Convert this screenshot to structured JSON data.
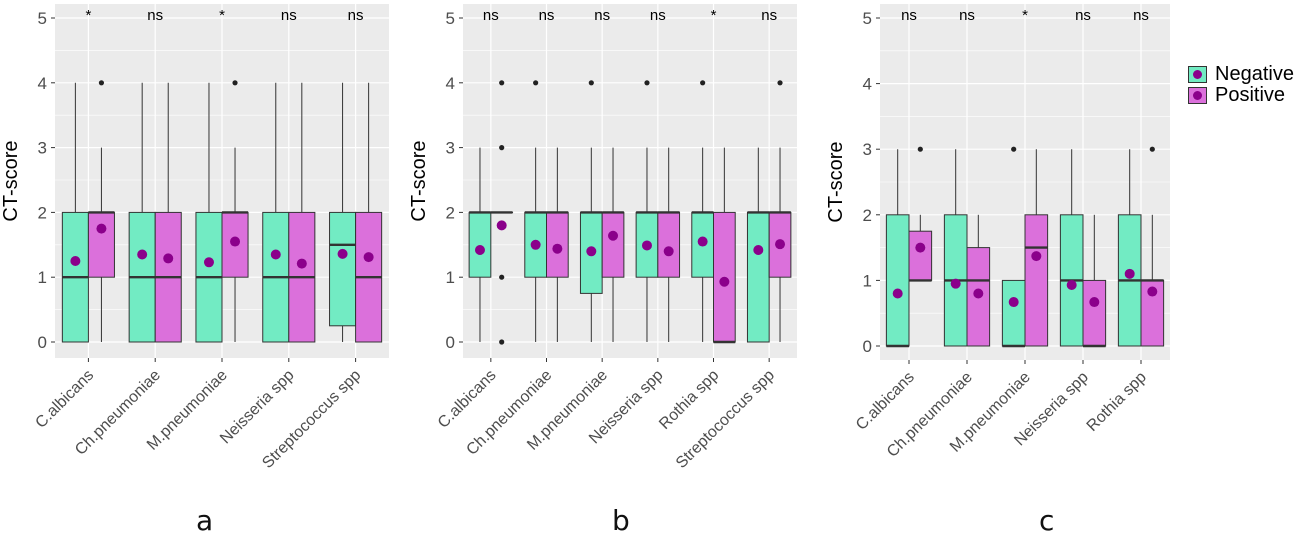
{
  "chart_data": [
    {
      "panel_label": "a",
      "type": "boxplot",
      "ylabel": "CT-score",
      "xlabel": "",
      "ylim": [
        -0.25,
        5.2
      ],
      "yticks": [
        0,
        1,
        2,
        3,
        4,
        5
      ],
      "grid": true,
      "categories": [
        "C.albicans",
        "Ch.pneumoniae",
        "M.pneumoniae",
        "Neisseria spp",
        "Streptococcus spp"
      ],
      "significance": [
        "*",
        "ns",
        "*",
        "ns",
        "ns"
      ],
      "series": [
        {
          "name": "Negative",
          "boxes": [
            {
              "min": 0,
              "q1": 0,
              "median": 1,
              "q3": 2,
              "max": 4,
              "mean": 1.25,
              "outliers": []
            },
            {
              "min": 0,
              "q1": 0,
              "median": 1,
              "q3": 2,
              "max": 4,
              "mean": 1.35,
              "outliers": []
            },
            {
              "min": 0,
              "q1": 0,
              "median": 1,
              "q3": 2,
              "max": 4,
              "mean": 1.23,
              "outliers": []
            },
            {
              "min": 0,
              "q1": 0,
              "median": 1,
              "q3": 2,
              "max": 4,
              "mean": 1.35,
              "outliers": []
            },
            {
              "min": 0,
              "q1": 0.25,
              "median": 1.5,
              "q3": 2,
              "max": 4,
              "mean": 1.36,
              "outliers": []
            }
          ]
        },
        {
          "name": "Positive",
          "boxes": [
            {
              "min": 0,
              "q1": 1,
              "median": 2,
              "q3": 2,
              "max": 3,
              "mean": 1.75,
              "outliers": [
                4
              ]
            },
            {
              "min": 0,
              "q1": 0,
              "median": 1,
              "q3": 2,
              "max": 4,
              "mean": 1.29,
              "outliers": []
            },
            {
              "min": 0,
              "q1": 1,
              "median": 2,
              "q3": 2,
              "max": 3,
              "mean": 1.55,
              "outliers": [
                4
              ]
            },
            {
              "min": 0,
              "q1": 0,
              "median": 1,
              "q3": 2,
              "max": 4,
              "mean": 1.21,
              "outliers": []
            },
            {
              "min": 0,
              "q1": 0,
              "median": 1,
              "q3": 2,
              "max": 4,
              "mean": 1.31,
              "outliers": []
            }
          ]
        }
      ]
    },
    {
      "panel_label": "b",
      "type": "boxplot",
      "ylabel": "CT-score",
      "xlabel": "",
      "ylim": [
        -0.25,
        5.2
      ],
      "yticks": [
        0,
        1,
        2,
        3,
        4,
        5
      ],
      "grid": true,
      "categories": [
        "C.albicans",
        "Ch.pneumoniae",
        "M.pneumoniae",
        "Neisseria spp",
        "Rothia spp",
        "Streptococcus spp"
      ],
      "significance": [
        "ns",
        "ns",
        "ns",
        "ns",
        "*",
        "ns"
      ],
      "series": [
        {
          "name": "Negative",
          "boxes": [
            {
              "min": 0,
              "q1": 1,
              "median": 2,
              "q3": 2,
              "max": 3,
              "mean": 1.42,
              "outliers": []
            },
            {
              "min": 0,
              "q1": 1,
              "median": 2,
              "q3": 2,
              "max": 3,
              "mean": 1.5,
              "outliers": [
                4
              ]
            },
            {
              "min": 0,
              "q1": 0.75,
              "median": 2,
              "q3": 2,
              "max": 3,
              "mean": 1.4,
              "outliers": [
                4
              ]
            },
            {
              "min": 0,
              "q1": 1,
              "median": 2,
              "q3": 2,
              "max": 3,
              "mean": 1.49,
              "outliers": [
                4
              ]
            },
            {
              "min": 0,
              "q1": 1,
              "median": 2,
              "q3": 2,
              "max": 3,
              "mean": 1.55,
              "outliers": [
                4
              ]
            },
            {
              "min": 0,
              "q1": 0,
              "median": 2,
              "q3": 2,
              "max": 3,
              "mean": 1.42,
              "outliers": []
            }
          ]
        },
        {
          "name": "Positive",
          "boxes": [
            {
              "min": 2,
              "q1": 2,
              "median": 2,
              "q3": 2,
              "max": 2,
              "mean": 1.8,
              "outliers": [
                4,
                3,
                1,
                0
              ]
            },
            {
              "min": 0,
              "q1": 1,
              "median": 2,
              "q3": 2,
              "max": 3,
              "mean": 1.44,
              "outliers": []
            },
            {
              "min": 0,
              "q1": 1,
              "median": 2,
              "q3": 2,
              "max": 3,
              "mean": 1.64,
              "outliers": []
            },
            {
              "min": 0,
              "q1": 1,
              "median": 2,
              "q3": 2,
              "max": 3,
              "mean": 1.4,
              "outliers": []
            },
            {
              "min": 0,
              "q1": 0,
              "median": 0,
              "q3": 2,
              "max": 3,
              "mean": 0.93,
              "outliers": []
            },
            {
              "min": 0,
              "q1": 1,
              "median": 2,
              "q3": 2,
              "max": 3,
              "mean": 1.51,
              "outliers": [
                4
              ]
            }
          ]
        }
      ]
    },
    {
      "panel_label": "c",
      "type": "boxplot",
      "ylabel": "CT-score",
      "xlabel": "",
      "ylim": [
        -0.25,
        5.2
      ],
      "yticks": [
        0,
        1,
        2,
        3,
        4,
        5
      ],
      "grid": true,
      "categories": [
        "C.albicans",
        "Ch.pneumoniae",
        "M.pneumoniae",
        "Neisseria spp",
        "Rothia spp"
      ],
      "significance": [
        "ns",
        "ns",
        "*",
        "ns",
        "ns"
      ],
      "series": [
        {
          "name": "Negative",
          "boxes": [
            {
              "min": 0,
              "q1": 0,
              "median": 0,
              "q3": 2,
              "max": 3,
              "mean": 0.8,
              "outliers": []
            },
            {
              "min": 0,
              "q1": 0,
              "median": 1,
              "q3": 2,
              "max": 3,
              "mean": 0.95,
              "outliers": []
            },
            {
              "min": 0,
              "q1": 0,
              "median": 0,
              "q3": 1,
              "max": 1,
              "mean": 0.67,
              "outliers": [
                3
              ]
            },
            {
              "min": 0,
              "q1": 0,
              "median": 1,
              "q3": 2,
              "max": 3,
              "mean": 0.93,
              "outliers": []
            },
            {
              "min": 0,
              "q1": 0,
              "median": 1,
              "q3": 2,
              "max": 3,
              "mean": 1.1,
              "outliers": []
            }
          ]
        },
        {
          "name": "Positive",
          "boxes": [
            {
              "min": 1,
              "q1": 1,
              "median": 1,
              "q3": 1.75,
              "max": 2,
              "mean": 1.5,
              "outliers": [
                3
              ]
            },
            {
              "min": 0,
              "q1": 0,
              "median": 1,
              "q3": 1.5,
              "max": 2,
              "mean": 0.8,
              "outliers": []
            },
            {
              "min": 0,
              "q1": 0,
              "median": 1.5,
              "q3": 2,
              "max": 3,
              "mean": 1.37,
              "outliers": []
            },
            {
              "min": 0,
              "q1": 0,
              "median": 0,
              "q3": 1,
              "max": 2,
              "mean": 0.67,
              "outliers": []
            },
            {
              "min": 0,
              "q1": 0,
              "median": 1,
              "q3": 1,
              "max": 2,
              "mean": 0.83,
              "outliers": [
                3
              ]
            }
          ]
        }
      ]
    }
  ],
  "legend": {
    "position": "right",
    "items": [
      {
        "label": "Negative",
        "color": "#72ebc3"
      },
      {
        "label": "Positive",
        "color": "#db70db"
      }
    ]
  },
  "colors": {
    "negative_fill": "#72ebc3",
    "positive_fill": "#db70db",
    "mean_point": "#8b008b",
    "panel_bg": "#ebebeb",
    "grid": "#ffffff",
    "box_line": "#333333"
  }
}
